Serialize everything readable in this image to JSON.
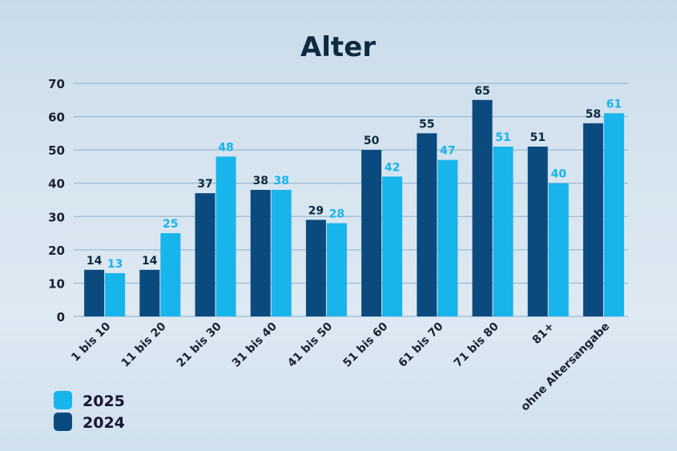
{
  "chart_data": {
    "type": "bar",
    "title": "Alter",
    "categories": [
      "1 bis 10",
      "11 bis 20",
      "21 bis 30",
      "31 bis 40",
      "41 bis 50",
      "51 bis 60",
      "61 bis 70",
      "71 bis 80",
      "81+",
      "ohne Altersangabe"
    ],
    "series": [
      {
        "name": "2024",
        "color": "#0b4a7e",
        "values": [
          14,
          14,
          37,
          38,
          29,
          50,
          55,
          65,
          51,
          58
        ]
      },
      {
        "name": "2025",
        "color": "#18b4ec",
        "values": [
          13,
          25,
          48,
          38,
          28,
          42,
          47,
          51,
          40,
          61
        ]
      }
    ],
    "ylim": [
      0,
      70
    ],
    "yticks": [
      0,
      10,
      20,
      30,
      40,
      50,
      60,
      70
    ],
    "grid": true,
    "legend": {
      "placement": "bottom-left",
      "entries": [
        {
          "label": "2025",
          "color": "#18b4ec"
        },
        {
          "label": "2024",
          "color": "#0b4a7e"
        }
      ]
    },
    "label_colors": {
      "2024": "#0f2a40",
      "2025": "#18b4ec"
    }
  }
}
